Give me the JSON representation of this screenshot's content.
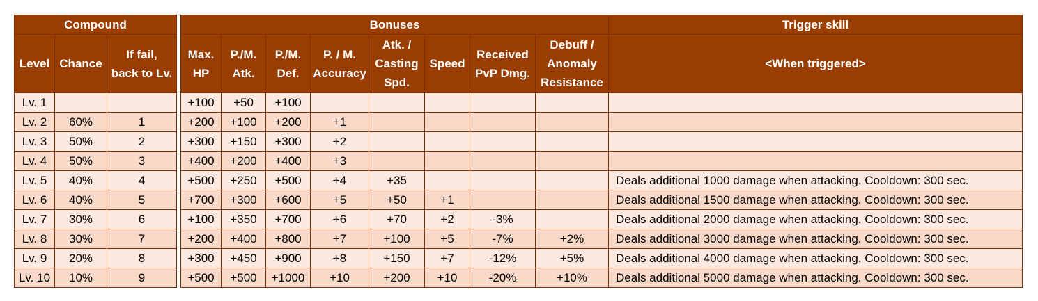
{
  "headers": {
    "compound": "Compound",
    "bonuses": "Bonuses",
    "trigger": "Trigger skill",
    "level": "Level",
    "chance": "Chance",
    "if_fail_1": "If fail,",
    "if_fail_2": "back to Lv.",
    "max_hp_1": "Max.",
    "max_hp_2": "HP",
    "pm_atk_1": "P./M.",
    "pm_atk_2": "Atk.",
    "pm_def_1": "P./M.",
    "pm_def_2": "Def.",
    "acc_1": "P. / M.",
    "acc_2": "Accuracy",
    "spd_1": "Atk. /",
    "spd_2": "Casting",
    "spd_3": "Spd.",
    "speed": "Speed",
    "pvp_1": "Received",
    "pvp_2": "PvP Dmg.",
    "debuff_1": "Debuff /",
    "debuff_2": "Anomaly",
    "debuff_3": "Resistance",
    "when_triggered": "<When triggered>"
  },
  "rows": [
    {
      "level": "Lv. 1",
      "chance": "",
      "back": "",
      "hp": "+100",
      "atk": "+50",
      "def": "+100",
      "acc": "",
      "cast": "",
      "speed": "",
      "pvp": "",
      "debuff": "",
      "skill": ""
    },
    {
      "level": "Lv. 2",
      "chance": "60%",
      "back": "1",
      "hp": "+200",
      "atk": "+100",
      "def": "+200",
      "acc": "+1",
      "cast": "",
      "speed": "",
      "pvp": "",
      "debuff": "",
      "skill": ""
    },
    {
      "level": "Lv. 3",
      "chance": "50%",
      "back": "2",
      "hp": "+300",
      "atk": "+150",
      "def": "+300",
      "acc": "+2",
      "cast": "",
      "speed": "",
      "pvp": "",
      "debuff": "",
      "skill": ""
    },
    {
      "level": "Lv. 4",
      "chance": "50%",
      "back": "3",
      "hp": "+400",
      "atk": "+200",
      "def": "+400",
      "acc": "+3",
      "cast": "",
      "speed": "",
      "pvp": "",
      "debuff": "",
      "skill": ""
    },
    {
      "level": "Lv. 5",
      "chance": "40%",
      "back": "4",
      "hp": "+500",
      "atk": "+250",
      "def": "+500",
      "acc": "+4",
      "cast": "+35",
      "speed": "",
      "pvp": "",
      "debuff": "",
      "skill": "Deals additional 1000 damage when attacking. Cooldown: 300 sec."
    },
    {
      "level": "Lv. 6",
      "chance": "40%",
      "back": "5",
      "hp": "+700",
      "atk": "+300",
      "def": "+600",
      "acc": "+5",
      "cast": "+50",
      "speed": "+1",
      "pvp": "",
      "debuff": "",
      "skill": "Deals additional 1500 damage when attacking. Cooldown: 300 sec."
    },
    {
      "level": "Lv. 7",
      "chance": "30%",
      "back": "6",
      "hp": "+100",
      "atk": "+350",
      "def": "+700",
      "acc": "+6",
      "cast": "+70",
      "speed": "+2",
      "pvp": "-3%",
      "debuff": "",
      "skill": "Deals additional 2000 damage when attacking. Cooldown: 300 sec."
    },
    {
      "level": "Lv. 8",
      "chance": "30%",
      "back": "7",
      "hp": "+200",
      "atk": "+400",
      "def": "+800",
      "acc": "+7",
      "cast": "+100",
      "speed": "+5",
      "pvp": "-7%",
      "debuff": "+2%",
      "skill": "Deals additional 3000 damage when attacking. Cooldown: 300 sec."
    },
    {
      "level": "Lv. 9",
      "chance": "20%",
      "back": "8",
      "hp": "+300",
      "atk": "+450",
      "def": "+900",
      "acc": "+8",
      "cast": "+150",
      "speed": "+7",
      "pvp": "-12%",
      "debuff": "+5%",
      "skill": "Deals additional 4000 damage when attacking. Cooldown: 300 sec."
    },
    {
      "level": "Lv. 10",
      "chance": "10%",
      "back": "9",
      "hp": "+500",
      "atk": "+500",
      "def": "+1000",
      "acc": "+10",
      "cast": "+200",
      "speed": "+10",
      "pvp": "-20%",
      "debuff": "+10%",
      "skill": "Deals additional 5000 damage when attacking. Cooldown: 300 sec."
    }
  ]
}
